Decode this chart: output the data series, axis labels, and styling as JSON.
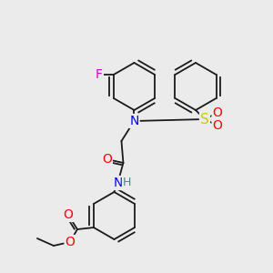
{
  "bg_color": "#ebebeb",
  "bond_color": "#1a1a1a",
  "atoms": {
    "F": {
      "color": "#cc00cc",
      "size": 10
    },
    "N": {
      "color": "#0000ff",
      "size": 10
    },
    "O": {
      "color": "#ff0000",
      "size": 10
    },
    "S": {
      "color": "#cccc00",
      "size": 11
    },
    "H": {
      "color": "#448888",
      "size": 9
    }
  },
  "figsize": [
    3.0,
    3.0
  ],
  "dpi": 100,
  "lw": 1.3,
  "ring_r": 26,
  "offset_r": 4.5
}
